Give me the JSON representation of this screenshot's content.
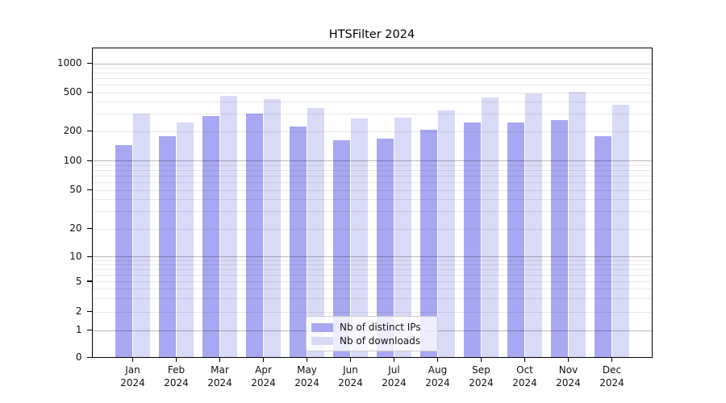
{
  "title": "HTSFilter 2024",
  "chart_data": {
    "type": "bar",
    "title": "HTSFilter 2024",
    "categories": [
      "Jan",
      "Feb",
      "Mar",
      "Apr",
      "May",
      "Jun",
      "Jul",
      "Aug",
      "Sep",
      "Oct",
      "Nov",
      "Dec"
    ],
    "year_label": "2024",
    "series": [
      {
        "name": "Nb of distinct IPs",
        "color": "#a7a7f2",
        "values": [
          143,
          178,
          285,
          303,
          224,
          163,
          167,
          207,
          247,
          243,
          260,
          178
        ]
      },
      {
        "name": "Nb of downloads",
        "color": "#d9d9f8",
        "values": [
          305,
          245,
          465,
          425,
          345,
          272,
          275,
          325,
          440,
          492,
          505,
          372
        ]
      }
    ],
    "yscale": "log-like with 0 baseline",
    "yticks": [
      0,
      1,
      2,
      5,
      10,
      20,
      50,
      100,
      200,
      500,
      1000
    ],
    "minor_gridlines": [
      3,
      4,
      6,
      7,
      8,
      9,
      30,
      40,
      60,
      70,
      80,
      90,
      300,
      400,
      600,
      700,
      800,
      900
    ],
    "major_gridlines_at": [
      1,
      10,
      100,
      1000
    ],
    "ylim": [
      0,
      1500
    ],
    "grid": true,
    "legend_position": "inside lower center",
    "bar_colors": {
      "distinct_ips": "#a7a7f2",
      "downloads": "#d9d9f8"
    }
  },
  "legend": {
    "items": [
      {
        "label": "Nb of distinct IPs"
      },
      {
        "label": "Nb of downloads"
      }
    ]
  }
}
